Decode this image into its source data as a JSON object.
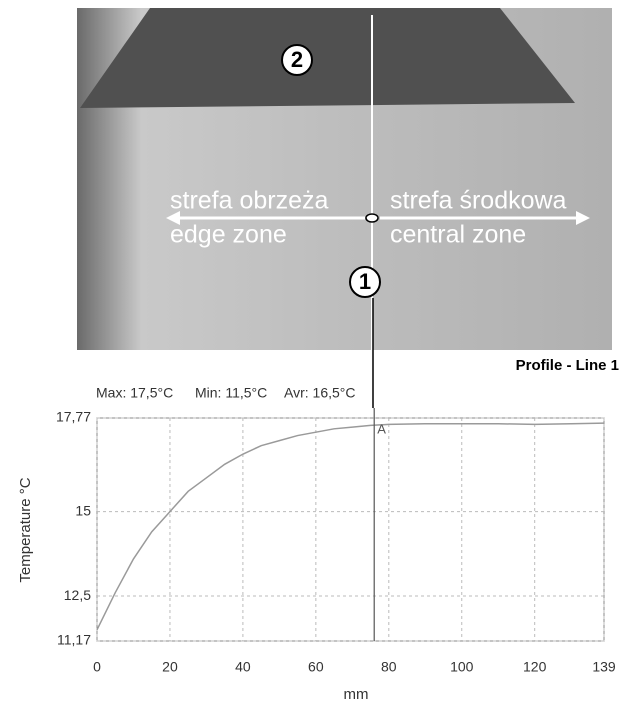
{
  "image": {
    "label_top": "2",
    "label_bottom": "1",
    "left_pl": "strefa obrzeża",
    "left_en": "edge zone",
    "right_pl": "strefa środkowa",
    "right_en": "central zone"
  },
  "chart_data": {
    "type": "line",
    "title": "Profile - Line 1",
    "stats": [
      "Max: 17,5°C",
      "Min: 11,5°C",
      "Avr: 16,5°C"
    ],
    "x_label": "mm",
    "y_label": "Temperature °C",
    "x": [
      0,
      5,
      10,
      15,
      20,
      25,
      30,
      35,
      40,
      45,
      50,
      55,
      60,
      65,
      70,
      75,
      80,
      90,
      100,
      110,
      120,
      130,
      139
    ],
    "values": [
      11.5,
      12.6,
      13.6,
      14.4,
      15.0,
      15.6,
      16.0,
      16.4,
      16.7,
      16.95,
      17.1,
      17.25,
      17.35,
      17.45,
      17.5,
      17.55,
      17.58,
      17.6,
      17.6,
      17.6,
      17.58,
      17.6,
      17.62
    ],
    "color": "#9a9a9a",
    "xlim": [
      0,
      139
    ],
    "xticks": [
      0,
      20,
      40,
      60,
      80,
      100,
      120,
      139
    ],
    "ylim": [
      11.17,
      17.77
    ],
    "yticks": [
      {
        "value": 11.17,
        "label": "11,17"
      },
      {
        "value": 12.5,
        "label": "12,5"
      },
      15,
      {
        "value": 17.77,
        "label": "17,77"
      }
    ],
    "grid": true,
    "cursor_x": 76,
    "cursor_label": "A"
  }
}
